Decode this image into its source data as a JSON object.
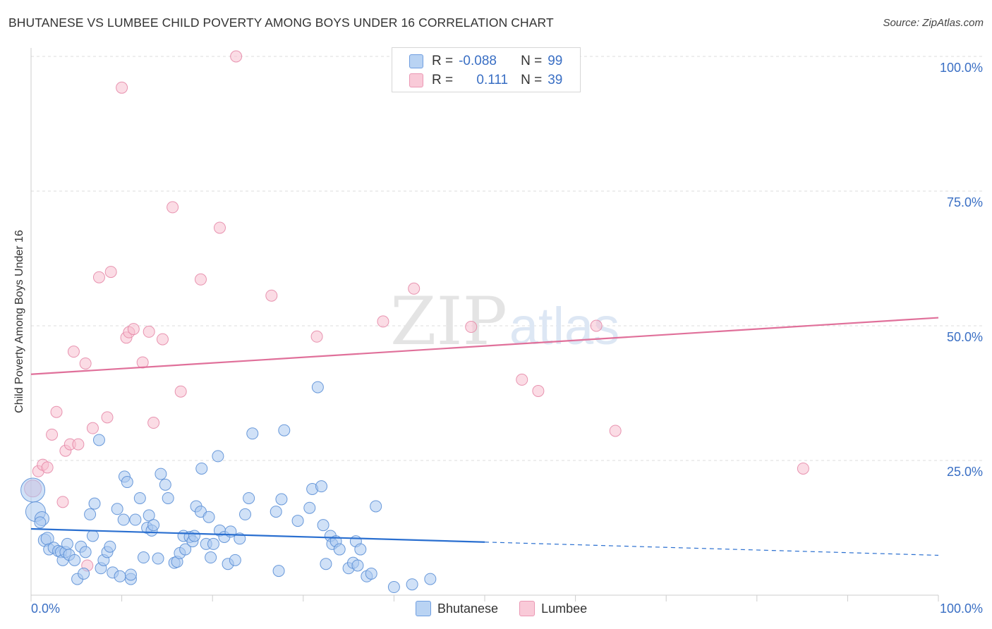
{
  "header": {
    "title": "BHUTANESE VS LUMBEE CHILD POVERTY AMONG BOYS UNDER 16 CORRELATION CHART",
    "source": "Source: ZipAtlas.com"
  },
  "watermark": {
    "zip": "ZIP",
    "atlas": "atlas"
  },
  "legend_top": {
    "rows": [
      {
        "r_label": "R =",
        "r_value": "-0.088",
        "n_label": "N =",
        "n_value": "99"
      },
      {
        "r_label": "R =",
        "r_value": "0.111",
        "n_label": "N =",
        "n_value": "39"
      }
    ]
  },
  "colors": {
    "bhutanese_fill": "#a9c9f0",
    "bhutanese_stroke": "#5b8fd6",
    "bhutanese_line": "#2a6fd0",
    "lumbee_fill": "#f7bfd0",
    "lumbee_stroke": "#e58aa8",
    "lumbee_line": "#e0709a",
    "grid": "#dedede",
    "tick_label": "#3a6fc4"
  },
  "chart_data": {
    "type": "scatter",
    "title": "BHUTANESE VS LUMBEE CHILD POVERTY AMONG BOYS UNDER 16 CORRELATION CHART",
    "xlabel": "",
    "ylabel": "Child Poverty Among Boys Under 16",
    "xlim": [
      0,
      100
    ],
    "ylim": [
      0,
      100
    ],
    "x_tick_labels": [
      "0.0%",
      "100.0%"
    ],
    "y_ticks": [
      25,
      50,
      75,
      100
    ],
    "y_tick_labels": [
      "25.0%",
      "50.0%",
      "75.0%",
      "100.0%"
    ],
    "grid": true,
    "legend_position": "bottom-center",
    "series": [
      {
        "name": "Bhutanese",
        "r": -0.088,
        "n": 99,
        "trend": {
          "x": [
            0,
            50,
            100
          ],
          "y": [
            12.3,
            9.9,
            7.4
          ],
          "solid_until_x": 50
        },
        "points": [
          {
            "x": 0.2,
            "y": 19.5,
            "s": 17
          },
          {
            "x": 0.5,
            "y": 15.5,
            "s": 14
          },
          {
            "x": 1.2,
            "y": 14.2,
            "s": 10
          },
          {
            "x": 1.0,
            "y": 13.5,
            "s": 8
          },
          {
            "x": 1.5,
            "y": 10.2,
            "s": 9
          },
          {
            "x": 1.8,
            "y": 10.5,
            "s": 9
          },
          {
            "x": 2.0,
            "y": 8.5,
            "s": 8
          },
          {
            "x": 2.5,
            "y": 8.8,
            "s": 8
          },
          {
            "x": 3.0,
            "y": 8.2,
            "s": 8
          },
          {
            "x": 3.3,
            "y": 8.0,
            "s": 8
          },
          {
            "x": 3.5,
            "y": 6.5,
            "s": 8
          },
          {
            "x": 3.8,
            "y": 8.0,
            "s": 8
          },
          {
            "x": 4.0,
            "y": 9.5,
            "s": 8
          },
          {
            "x": 4.2,
            "y": 7.5,
            "s": 8
          },
          {
            "x": 4.8,
            "y": 6.5,
            "s": 8
          },
          {
            "x": 5.1,
            "y": 3.0,
            "s": 8
          },
          {
            "x": 5.5,
            "y": 9.0,
            "s": 8
          },
          {
            "x": 5.8,
            "y": 4.0,
            "s": 8
          },
          {
            "x": 6.0,
            "y": 8.0,
            "s": 8
          },
          {
            "x": 6.5,
            "y": 15.0,
            "s": 8
          },
          {
            "x": 6.8,
            "y": 11.0,
            "s": 8
          },
          {
            "x": 7.0,
            "y": 17.0,
            "s": 8
          },
          {
            "x": 7.5,
            "y": 28.8,
            "s": 8
          },
          {
            "x": 7.7,
            "y": 5.0,
            "s": 8
          },
          {
            "x": 8.0,
            "y": 6.5,
            "s": 8
          },
          {
            "x": 8.4,
            "y": 8.0,
            "s": 8
          },
          {
            "x": 8.7,
            "y": 9.0,
            "s": 8
          },
          {
            "x": 9.0,
            "y": 4.2,
            "s": 8
          },
          {
            "x": 9.5,
            "y": 16.0,
            "s": 8
          },
          {
            "x": 9.8,
            "y": 3.5,
            "s": 8
          },
          {
            "x": 10.2,
            "y": 14.0,
            "s": 8
          },
          {
            "x": 10.3,
            "y": 22.0,
            "s": 8
          },
          {
            "x": 10.6,
            "y": 21.0,
            "s": 8
          },
          {
            "x": 11.0,
            "y": 3.0,
            "s": 8
          },
          {
            "x": 11.0,
            "y": 3.8,
            "s": 8
          },
          {
            "x": 11.5,
            "y": 14.0,
            "s": 8
          },
          {
            "x": 12.0,
            "y": 18.0,
            "s": 8
          },
          {
            "x": 12.4,
            "y": 7.0,
            "s": 8
          },
          {
            "x": 12.8,
            "y": 12.5,
            "s": 8
          },
          {
            "x": 13.0,
            "y": 14.8,
            "s": 8
          },
          {
            "x": 13.3,
            "y": 12.0,
            "s": 8
          },
          {
            "x": 13.5,
            "y": 13.0,
            "s": 8
          },
          {
            "x": 14.0,
            "y": 6.8,
            "s": 8
          },
          {
            "x": 14.3,
            "y": 22.5,
            "s": 8
          },
          {
            "x": 14.8,
            "y": 20.5,
            "s": 8
          },
          {
            "x": 15.1,
            "y": 18.0,
            "s": 8
          },
          {
            "x": 15.8,
            "y": 6.0,
            "s": 8
          },
          {
            "x": 16.1,
            "y": 6.2,
            "s": 8
          },
          {
            "x": 16.4,
            "y": 7.8,
            "s": 8
          },
          {
            "x": 16.8,
            "y": 11.0,
            "s": 8
          },
          {
            "x": 17.0,
            "y": 8.5,
            "s": 8
          },
          {
            "x": 17.5,
            "y": 10.8,
            "s": 8
          },
          {
            "x": 17.8,
            "y": 10.0,
            "s": 8
          },
          {
            "x": 18.0,
            "y": 11.0,
            "s": 8
          },
          {
            "x": 18.2,
            "y": 16.5,
            "s": 8
          },
          {
            "x": 18.7,
            "y": 15.5,
            "s": 8
          },
          {
            "x": 18.8,
            "y": 23.5,
            "s": 8
          },
          {
            "x": 19.3,
            "y": 9.5,
            "s": 8
          },
          {
            "x": 19.6,
            "y": 14.5,
            "s": 8
          },
          {
            "x": 19.8,
            "y": 7.0,
            "s": 8
          },
          {
            "x": 20.1,
            "y": 9.5,
            "s": 8
          },
          {
            "x": 20.6,
            "y": 25.8,
            "s": 8
          },
          {
            "x": 20.8,
            "y": 12.0,
            "s": 8
          },
          {
            "x": 21.3,
            "y": 10.8,
            "s": 8
          },
          {
            "x": 21.7,
            "y": 5.8,
            "s": 8
          },
          {
            "x": 22.0,
            "y": 11.8,
            "s": 8
          },
          {
            "x": 22.5,
            "y": 6.5,
            "s": 8
          },
          {
            "x": 23.0,
            "y": 10.5,
            "s": 8
          },
          {
            "x": 23.6,
            "y": 15.0,
            "s": 8
          },
          {
            "x": 24.0,
            "y": 18.0,
            "s": 8
          },
          {
            "x": 24.4,
            "y": 30.0,
            "s": 8
          },
          {
            "x": 27.0,
            "y": 15.5,
            "s": 8
          },
          {
            "x": 27.3,
            "y": 4.5,
            "s": 8
          },
          {
            "x": 27.6,
            "y": 17.8,
            "s": 8
          },
          {
            "x": 27.9,
            "y": 30.6,
            "s": 8
          },
          {
            "x": 29.4,
            "y": 13.8,
            "s": 8
          },
          {
            "x": 30.7,
            "y": 16.2,
            "s": 8
          },
          {
            "x": 31.0,
            "y": 19.7,
            "s": 8
          },
          {
            "x": 31.6,
            "y": 38.6,
            "s": 8
          },
          {
            "x": 32.0,
            "y": 20.2,
            "s": 8
          },
          {
            "x": 32.2,
            "y": 13.0,
            "s": 8
          },
          {
            "x": 32.5,
            "y": 5.8,
            "s": 8
          },
          {
            "x": 33.0,
            "y": 11.0,
            "s": 8
          },
          {
            "x": 33.2,
            "y": 9.5,
            "s": 8
          },
          {
            "x": 33.6,
            "y": 10.0,
            "s": 8
          },
          {
            "x": 34.0,
            "y": 8.5,
            "s": 8
          },
          {
            "x": 35.0,
            "y": 5.0,
            "s": 8
          },
          {
            "x": 35.5,
            "y": 6.0,
            "s": 8
          },
          {
            "x": 35.8,
            "y": 10.0,
            "s": 8
          },
          {
            "x": 36.0,
            "y": 5.5,
            "s": 8
          },
          {
            "x": 36.3,
            "y": 8.5,
            "s": 8
          },
          {
            "x": 37.0,
            "y": 3.5,
            "s": 8
          },
          {
            "x": 37.5,
            "y": 4.0,
            "s": 8
          },
          {
            "x": 38.0,
            "y": 16.5,
            "s": 8
          },
          {
            "x": 40.0,
            "y": 1.5,
            "s": 8
          },
          {
            "x": 42.0,
            "y": 2.0,
            "s": 8
          },
          {
            "x": 44.0,
            "y": 3.0,
            "s": 8
          }
        ]
      },
      {
        "name": "Lumbee",
        "r": 0.111,
        "n": 39,
        "trend": {
          "x": [
            0,
            100
          ],
          "y": [
            41.0,
            51.5
          ],
          "solid_until_x": 100
        },
        "points": [
          {
            "x": 0.2,
            "y": 19.8,
            "s": 12
          },
          {
            "x": 0.8,
            "y": 23.0,
            "s": 8
          },
          {
            "x": 1.3,
            "y": 24.2,
            "s": 8
          },
          {
            "x": 1.8,
            "y": 23.7,
            "s": 8
          },
          {
            "x": 2.3,
            "y": 29.8,
            "s": 8
          },
          {
            "x": 2.8,
            "y": 34.0,
            "s": 8
          },
          {
            "x": 3.5,
            "y": 17.3,
            "s": 8
          },
          {
            "x": 3.8,
            "y": 26.8,
            "s": 8
          },
          {
            "x": 4.3,
            "y": 28.0,
            "s": 8
          },
          {
            "x": 4.7,
            "y": 45.2,
            "s": 8
          },
          {
            "x": 5.2,
            "y": 28.0,
            "s": 8
          },
          {
            "x": 6.0,
            "y": 43.0,
            "s": 8
          },
          {
            "x": 6.2,
            "y": 5.5,
            "s": 8
          },
          {
            "x": 6.8,
            "y": 31.0,
            "s": 8
          },
          {
            "x": 7.5,
            "y": 59.0,
            "s": 8
          },
          {
            "x": 8.4,
            "y": 33.0,
            "s": 8
          },
          {
            "x": 8.8,
            "y": 60.0,
            "s": 8
          },
          {
            "x": 10.0,
            "y": 94.2,
            "s": 8
          },
          {
            "x": 10.5,
            "y": 47.8,
            "s": 8
          },
          {
            "x": 10.8,
            "y": 48.8,
            "s": 8
          },
          {
            "x": 11.3,
            "y": 49.4,
            "s": 8
          },
          {
            "x": 12.3,
            "y": 43.2,
            "s": 8
          },
          {
            "x": 13.0,
            "y": 48.9,
            "s": 8
          },
          {
            "x": 13.5,
            "y": 32.0,
            "s": 8
          },
          {
            "x": 14.5,
            "y": 47.5,
            "s": 8
          },
          {
            "x": 15.6,
            "y": 72.0,
            "s": 8
          },
          {
            "x": 16.5,
            "y": 37.8,
            "s": 8
          },
          {
            "x": 18.7,
            "y": 58.6,
            "s": 8
          },
          {
            "x": 20.8,
            "y": 68.2,
            "s": 8
          },
          {
            "x": 22.6,
            "y": 100.0,
            "s": 8
          },
          {
            "x": 26.5,
            "y": 55.6,
            "s": 8
          },
          {
            "x": 31.5,
            "y": 48.0,
            "s": 8
          },
          {
            "x": 38.8,
            "y": 50.8,
            "s": 8
          },
          {
            "x": 42.2,
            "y": 56.9,
            "s": 8
          },
          {
            "x": 48.5,
            "y": 49.8,
            "s": 8
          },
          {
            "x": 54.1,
            "y": 40.0,
            "s": 8
          },
          {
            "x": 55.9,
            "y": 37.9,
            "s": 8
          },
          {
            "x": 62.3,
            "y": 50.0,
            "s": 8
          },
          {
            "x": 64.4,
            "y": 30.5,
            "s": 8
          },
          {
            "x": 85.1,
            "y": 23.5,
            "s": 8
          }
        ]
      }
    ]
  },
  "bottom_legend": {
    "items": [
      {
        "label": "Bhutanese"
      },
      {
        "label": "Lumbee"
      }
    ]
  }
}
